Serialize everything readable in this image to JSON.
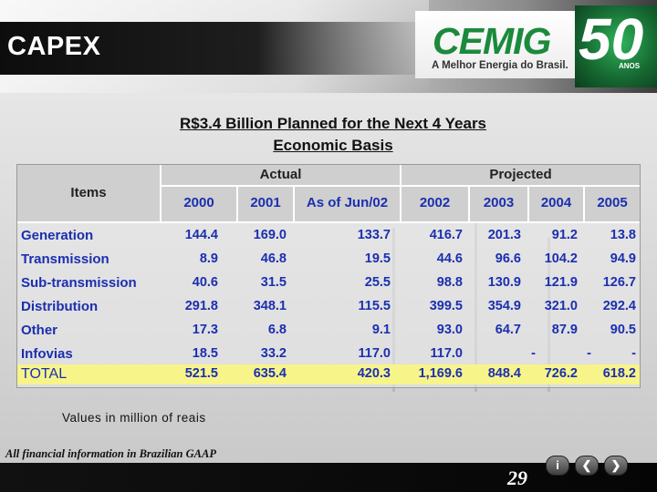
{
  "header": {
    "title": "CAPEX",
    "logo_text": "CEMIG",
    "logo_tagline": "A Melhor Energia do Brasil.",
    "anniversary_number": "50",
    "anniversary_label": "ANOS"
  },
  "subtitle": {
    "line1": "R$3.4 Billion Planned for the Next 4 Years",
    "line2": "Economic Basis"
  },
  "table": {
    "items_header": "Items",
    "actual_header": "Actual",
    "projected_header": "Projected",
    "columns": [
      "2000",
      "2001",
      "As of Jun/02",
      "2002",
      "2003",
      "2004",
      "2005"
    ],
    "rows": [
      {
        "label": "Generation",
        "values": [
          "144.4",
          "169.0",
          "133.7",
          "416.7",
          "201.3",
          "91.2",
          "13.8"
        ]
      },
      {
        "label": "Transmission",
        "values": [
          "8.9",
          "46.8",
          "19.5",
          "44.6",
          "96.6",
          "104.2",
          "94.9"
        ]
      },
      {
        "label": "Sub-transmission",
        "values": [
          "40.6",
          "31.5",
          "25.5",
          "98.8",
          "130.9",
          "121.9",
          "126.7"
        ]
      },
      {
        "label": "Distribution",
        "values": [
          "291.8",
          "348.1",
          "115.5",
          "399.5",
          "354.9",
          "321.0",
          "292.4"
        ]
      },
      {
        "label": "Other",
        "values": [
          "17.3",
          "6.8",
          "9.1",
          "93.0",
          "64.7",
          "87.9",
          "90.5"
        ]
      },
      {
        "label": "Infovias",
        "values": [
          "18.5",
          "33.2",
          "117.0",
          "117.0",
          "-",
          "-",
          "-"
        ]
      }
    ],
    "total": {
      "label": "TOTAL",
      "values": [
        "521.5",
        "635.4",
        "420.3",
        "1,169.6",
        "848.4",
        "726.2",
        "618.2"
      ]
    }
  },
  "note": "Values in million of reais",
  "footnote": "All financial information in Brazilian GAAP",
  "footer": {
    "page_number": "29",
    "info_button": "i",
    "prev_button": "❮",
    "next_button": "❯"
  },
  "colors": {
    "value_blue": "#1b2fb0",
    "total_band": "#f7f48a",
    "brand_green": "#1b8a3c"
  }
}
